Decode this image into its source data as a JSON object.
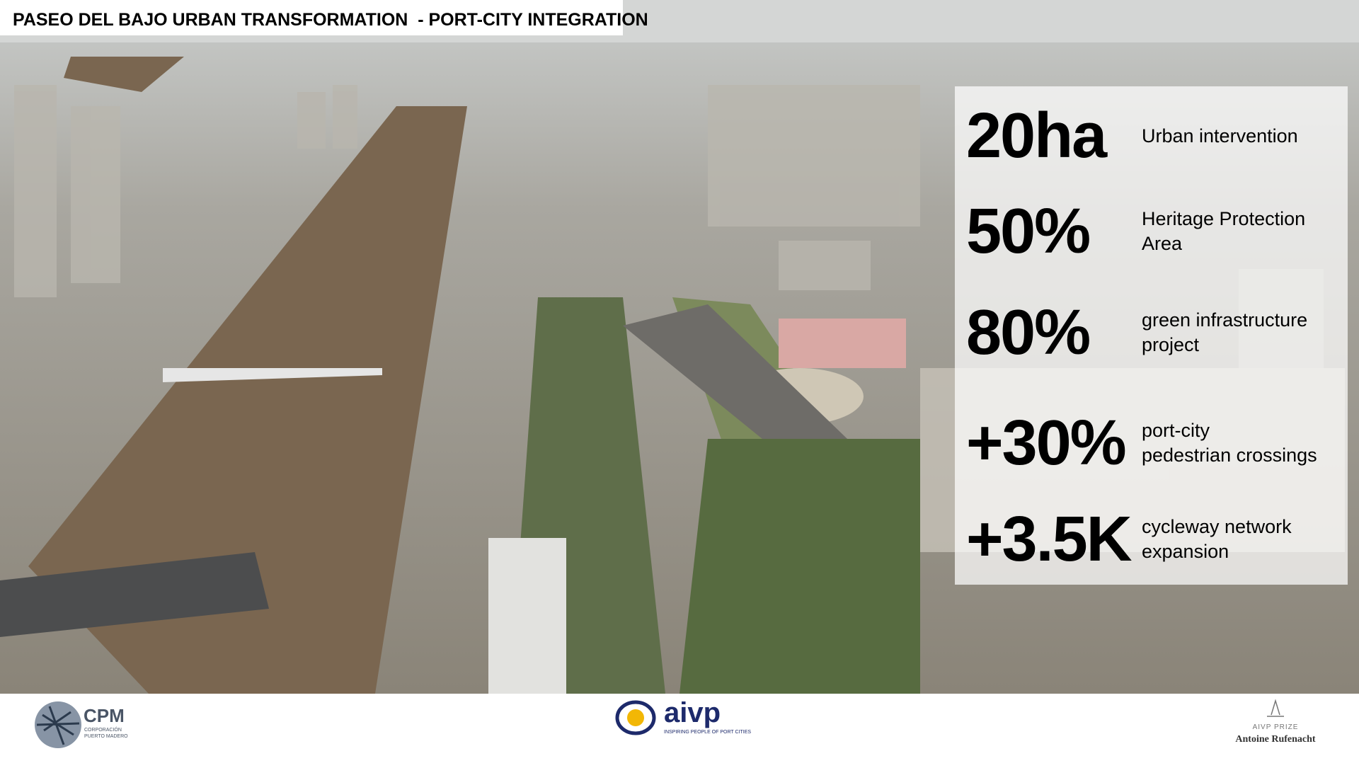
{
  "header": {
    "title": "PASEO DEL BAJO URBAN TRANSFORMATION  - PORT-CITY INTEGRATION"
  },
  "stats": [
    {
      "value": "20ha",
      "label": [
        "Urban intervention"
      ]
    },
    {
      "value": "50%",
      "label": [
        "Heritage Protection",
        "Area"
      ]
    },
    {
      "value": "80%",
      "label": [
        "green infrastructure",
        "project"
      ]
    },
    {
      "value": "+30%",
      "label": [
        "port-city",
        "pedestrian crossings"
      ]
    },
    {
      "value": "+3.5K",
      "label": [
        "cycleway network",
        "expansion"
      ]
    }
  ],
  "footer": {
    "cpm": {
      "name": "CPM",
      "subtitle": [
        "CORPORACIÓN",
        "PUERTO MADERO"
      ]
    },
    "aivp": {
      "name": "aivp",
      "tagline": "INSPIRING PEOPLE OF PORT CITIES"
    },
    "prize": {
      "name": "AIVP PRIZE",
      "person": "Antoine Rufenacht"
    }
  }
}
